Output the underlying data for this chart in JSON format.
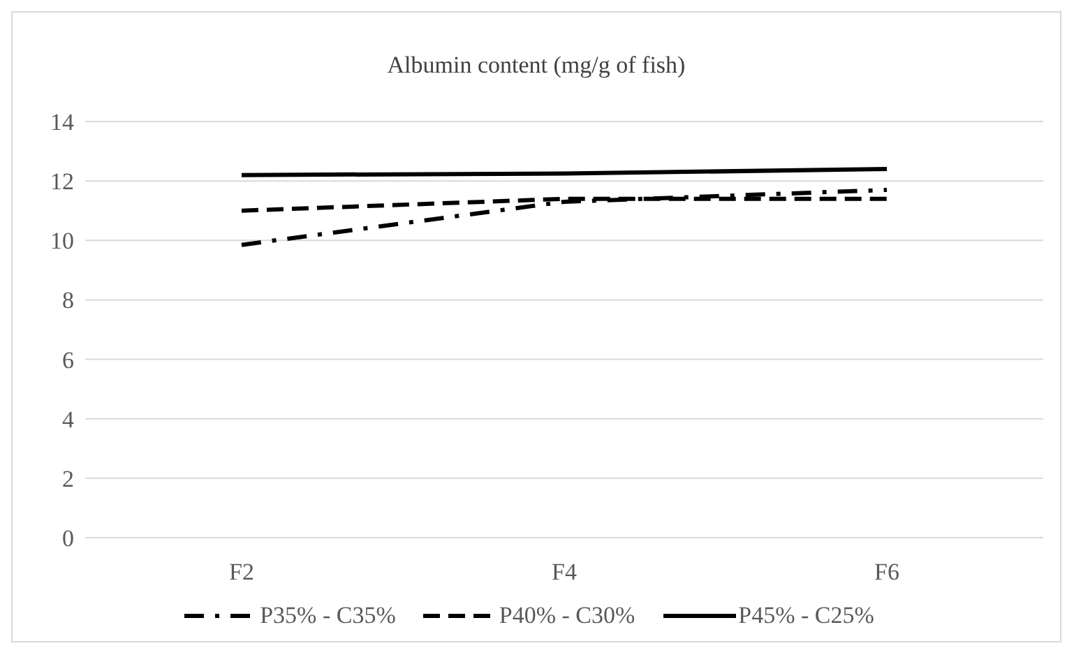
{
  "chart_data": {
    "type": "line",
    "title": "Albumin content  (mg/g of fish)",
    "categories": [
      "F2",
      "F4",
      "F6"
    ],
    "series": [
      {
        "name": "P35% - C35%",
        "color": "#000000",
        "line_style": "dashdot",
        "values": [
          9.85,
          11.3,
          11.7
        ]
      },
      {
        "name": "P40% - C30%",
        "color": "#000000",
        "line_style": "dashed",
        "values": [
          11.0,
          11.4,
          11.4
        ]
      },
      {
        "name": "P45% - C25%",
        "color": "#000000",
        "line_style": "solid",
        "values": [
          12.2,
          12.25,
          12.4
        ]
      }
    ],
    "ylim": [
      0,
      14
    ],
    "yticks": [
      0,
      2,
      4,
      6,
      8,
      10,
      12,
      14
    ],
    "grid": "y",
    "legend": "bottom",
    "marker": "none"
  }
}
